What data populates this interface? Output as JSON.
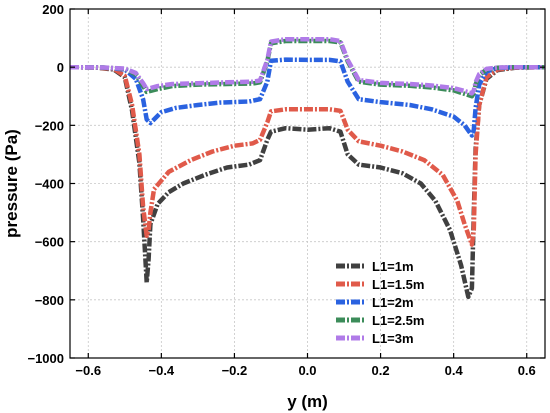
{
  "chart_data": {
    "type": "line",
    "title": "",
    "xlabel": "y (m)",
    "ylabel": "pressure (Pa)",
    "xlim": [
      -0.65,
      0.65
    ],
    "ylim": [
      -1000,
      200
    ],
    "xticks": [
      -0.6,
      -0.4,
      -0.2,
      0.0,
      0.2,
      0.4,
      0.6
    ],
    "xtick_labels": [
      "−0.6",
      "−0.4",
      "−0.2",
      "0.0",
      "0.2",
      "0.4",
      "0.6"
    ],
    "yticks": [
      -1000,
      -800,
      -600,
      -400,
      -200,
      0,
      200
    ],
    "ytick_labels": [
      "−1000",
      "−800",
      "−600",
      "−400",
      "−200",
      "0",
      "200"
    ],
    "grid": true,
    "legend_position": "bottom-right",
    "series": [
      {
        "name": "L1=1m",
        "color": "#404040",
        "points": [
          [
            -0.65,
            0
          ],
          [
            -0.58,
            -1
          ],
          [
            -0.53,
            -8
          ],
          [
            -0.5,
            -35
          ],
          [
            -0.48,
            -150
          ],
          [
            -0.46,
            -330
          ],
          [
            -0.45,
            -520
          ],
          [
            -0.44,
            -740
          ],
          [
            -0.435,
            -660
          ],
          [
            -0.43,
            -540
          ],
          [
            -0.41,
            -470
          ],
          [
            -0.38,
            -430
          ],
          [
            -0.34,
            -400
          ],
          [
            -0.28,
            -370
          ],
          [
            -0.22,
            -345
          ],
          [
            -0.16,
            -335
          ],
          [
            -0.13,
            -320
          ],
          [
            -0.11,
            -250
          ],
          [
            -0.1,
            -222
          ],
          [
            -0.06,
            -210
          ],
          [
            0.0,
            -215
          ],
          [
            0.06,
            -210
          ],
          [
            0.09,
            -222
          ],
          [
            0.11,
            -300
          ],
          [
            0.14,
            -335
          ],
          [
            0.2,
            -345
          ],
          [
            0.26,
            -365
          ],
          [
            0.31,
            -400
          ],
          [
            0.35,
            -460
          ],
          [
            0.39,
            -560
          ],
          [
            0.42,
            -680
          ],
          [
            0.44,
            -790
          ],
          [
            0.45,
            -760
          ],
          [
            0.455,
            -500
          ],
          [
            0.46,
            -280
          ],
          [
            0.47,
            -130
          ],
          [
            0.49,
            -40
          ],
          [
            0.52,
            -10
          ],
          [
            0.57,
            -2
          ],
          [
            0.65,
            0
          ]
        ]
      },
      {
        "name": "L1=1.5m",
        "color": "#e05a4a",
        "points": [
          [
            -0.65,
            0
          ],
          [
            -0.58,
            -1
          ],
          [
            -0.53,
            -6
          ],
          [
            -0.5,
            -30
          ],
          [
            -0.48,
            -130
          ],
          [
            -0.46,
            -300
          ],
          [
            -0.45,
            -480
          ],
          [
            -0.44,
            -580
          ],
          [
            -0.435,
            -560
          ],
          [
            -0.43,
            -500
          ],
          [
            -0.42,
            -420
          ],
          [
            -0.38,
            -360
          ],
          [
            -0.32,
            -320
          ],
          [
            -0.26,
            -290
          ],
          [
            -0.2,
            -270
          ],
          [
            -0.15,
            -262
          ],
          [
            -0.13,
            -250
          ],
          [
            -0.11,
            -190
          ],
          [
            -0.1,
            -152
          ],
          [
            -0.06,
            -145
          ],
          [
            0.0,
            -145
          ],
          [
            0.06,
            -145
          ],
          [
            0.09,
            -150
          ],
          [
            0.11,
            -215
          ],
          [
            0.14,
            -255
          ],
          [
            0.2,
            -270
          ],
          [
            0.26,
            -290
          ],
          [
            0.32,
            -320
          ],
          [
            0.37,
            -370
          ],
          [
            0.41,
            -460
          ],
          [
            0.43,
            -540
          ],
          [
            0.45,
            -610
          ],
          [
            0.455,
            -560
          ],
          [
            0.46,
            -300
          ],
          [
            0.47,
            -130
          ],
          [
            0.49,
            -35
          ],
          [
            0.52,
            -8
          ],
          [
            0.57,
            -1
          ],
          [
            0.65,
            0
          ]
        ]
      },
      {
        "name": "L1=2m",
        "color": "#2a62e0",
        "points": [
          [
            -0.65,
            0
          ],
          [
            -0.56,
            -1
          ],
          [
            -0.5,
            -8
          ],
          [
            -0.47,
            -40
          ],
          [
            -0.45,
            -110
          ],
          [
            -0.44,
            -180
          ],
          [
            -0.43,
            -192
          ],
          [
            -0.42,
            -180
          ],
          [
            -0.4,
            -155
          ],
          [
            -0.36,
            -140
          ],
          [
            -0.3,
            -130
          ],
          [
            -0.24,
            -122
          ],
          [
            -0.16,
            -118
          ],
          [
            -0.13,
            -110
          ],
          [
            -0.11,
            -50
          ],
          [
            -0.1,
            22
          ],
          [
            -0.06,
            26
          ],
          [
            0.0,
            25
          ],
          [
            0.06,
            25
          ],
          [
            0.09,
            20
          ],
          [
            0.11,
            -50
          ],
          [
            0.14,
            -110
          ],
          [
            0.2,
            -120
          ],
          [
            0.28,
            -130
          ],
          [
            0.34,
            -145
          ],
          [
            0.4,
            -170
          ],
          [
            0.43,
            -200
          ],
          [
            0.45,
            -235
          ],
          [
            0.455,
            -215
          ],
          [
            0.46,
            -140
          ],
          [
            0.47,
            -60
          ],
          [
            0.49,
            -15
          ],
          [
            0.52,
            -3
          ],
          [
            0.57,
            0
          ],
          [
            0.65,
            0
          ]
        ]
      },
      {
        "name": "L1=2.5m",
        "color": "#3c8c5a",
        "points": [
          [
            -0.65,
            0
          ],
          [
            -0.56,
            -1
          ],
          [
            -0.5,
            -6
          ],
          [
            -0.47,
            -25
          ],
          [
            -0.45,
            -65
          ],
          [
            -0.44,
            -85
          ],
          [
            -0.43,
            -82
          ],
          [
            -0.41,
            -75
          ],
          [
            -0.37,
            -65
          ],
          [
            -0.3,
            -60
          ],
          [
            -0.22,
            -58
          ],
          [
            -0.15,
            -56
          ],
          [
            -0.13,
            -52
          ],
          [
            -0.11,
            20
          ],
          [
            -0.1,
            82
          ],
          [
            -0.06,
            90
          ],
          [
            0.0,
            90
          ],
          [
            0.06,
            90
          ],
          [
            0.09,
            85
          ],
          [
            0.11,
            20
          ],
          [
            0.14,
            -50
          ],
          [
            0.2,
            -60
          ],
          [
            0.28,
            -64
          ],
          [
            0.34,
            -70
          ],
          [
            0.4,
            -80
          ],
          [
            0.43,
            -92
          ],
          [
            0.45,
            -100
          ],
          [
            0.455,
            -90
          ],
          [
            0.46,
            -60
          ],
          [
            0.47,
            -28
          ],
          [
            0.49,
            -8
          ],
          [
            0.52,
            -2
          ],
          [
            0.57,
            0
          ],
          [
            0.65,
            0
          ]
        ]
      },
      {
        "name": "L1=3m",
        "color": "#b07be8",
        "points": [
          [
            -0.65,
            0
          ],
          [
            -0.56,
            -1
          ],
          [
            -0.5,
            -5
          ],
          [
            -0.47,
            -20
          ],
          [
            -0.45,
            -55
          ],
          [
            -0.44,
            -75
          ],
          [
            -0.43,
            -72
          ],
          [
            -0.41,
            -65
          ],
          [
            -0.37,
            -58
          ],
          [
            -0.3,
            -55
          ],
          [
            -0.22,
            -52
          ],
          [
            -0.15,
            -50
          ],
          [
            -0.13,
            -46
          ],
          [
            -0.11,
            25
          ],
          [
            -0.1,
            88
          ],
          [
            -0.06,
            96
          ],
          [
            0.0,
            96
          ],
          [
            0.06,
            96
          ],
          [
            0.09,
            90
          ],
          [
            0.11,
            25
          ],
          [
            0.14,
            -44
          ],
          [
            0.2,
            -54
          ],
          [
            0.28,
            -58
          ],
          [
            0.34,
            -63
          ],
          [
            0.4,
            -72
          ],
          [
            0.43,
            -82
          ],
          [
            0.45,
            -90
          ],
          [
            0.455,
            -80
          ],
          [
            0.46,
            -52
          ],
          [
            0.47,
            -24
          ],
          [
            0.49,
            -6
          ],
          [
            0.52,
            -1
          ],
          [
            0.57,
            0
          ],
          [
            0.65,
            0
          ]
        ]
      }
    ]
  }
}
